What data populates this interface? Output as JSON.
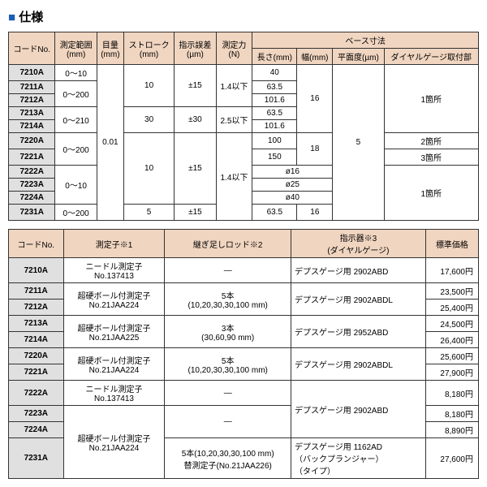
{
  "title": "仕様",
  "h1": {
    "code": "コードNo.",
    "range": "測定範囲\n(mm)",
    "scale": "目量\n(mm)",
    "stroke": "ストローク\n(mm)",
    "err": "指示誤差\n(µm)",
    "force": "測定力\n(N)",
    "base": "ベース寸法",
    "len": "長さ(mm)",
    "wid": "幅(mm)",
    "flat": "平面度(µm)",
    "mount": "ダイヤルゲージ取付部"
  },
  "r1": [
    {
      "c": "7210A",
      "rng": "0〜10",
      "len": "40"
    },
    {
      "c": "7211A",
      "len": "63.5"
    },
    {
      "c": "7212A",
      "len": "101.6"
    },
    {
      "c": "7213A",
      "len": "63.5"
    },
    {
      "c": "7214A",
      "len": "101.6"
    },
    {
      "c": "7220A",
      "len": "100"
    },
    {
      "c": "7221A",
      "len": "150"
    },
    {
      "c": "7222A",
      "len": "ø16"
    },
    {
      "c": "7223A",
      "len": "ø25"
    },
    {
      "c": "7224A",
      "len": "ø40"
    },
    {
      "c": "7231A",
      "len": "63.5"
    }
  ],
  "v": {
    "rng200": "0〜200",
    "rng210": "0〜210",
    "rng10": "0〜10",
    "scale": "0.01",
    "s10": "10",
    "s30": "30",
    "s5": "5",
    "e15": "±15",
    "e30": "±30",
    "f14": "1.4以下",
    "f25": "2.5以下",
    "w16": "16",
    "w18": "18",
    "flat5": "5",
    "m1": "1箇所",
    "m2": "2箇所",
    "m3": "3箇所"
  },
  "h2": {
    "code": "コードNo.",
    "probe": "測定子※1",
    "rod": "継ぎ足しロッド※2",
    "ind": "指示器※3\n(ダイヤルゲージ)",
    "price": "標準価格"
  },
  "r2": [
    {
      "c": "7210A",
      "pr": "ニードル測定子\nNo.137413",
      "rod": "—",
      "ind": "デプスゲージ用 2902ABD",
      "p": "17,600円"
    },
    {
      "c": "7211A",
      "pr": "超硬ボール付測定子\nNo.21JAA224",
      "rod": "5本\n(10,20,30,30,100 mm)",
      "ind": "デプスゲージ用 2902ABDL",
      "p": "23,500円"
    },
    {
      "c": "7212A",
      "p": "25,400円"
    },
    {
      "c": "7213A",
      "pr": "超硬ボール付測定子\nNo.21JAA225",
      "rod": "3本\n(30,60,90 mm)",
      "ind": "デプスゲージ用 2952ABD",
      "p": "24,500円"
    },
    {
      "c": "7214A",
      "p": "26,400円"
    },
    {
      "c": "7220A",
      "pr": "超硬ボール付測定子\nNo.21JAA224",
      "rod": "5本\n(10,20,30,30,100 mm)",
      "ind": "デプスゲージ用 2902ABDL",
      "p": "25,600円"
    },
    {
      "c": "7221A",
      "p": "27,900円"
    },
    {
      "c": "7222A",
      "pr": "ニードル測定子\nNo.137413",
      "rod": "—",
      "ind": "デプスゲージ用 2902ABD",
      "p": "8,180円"
    },
    {
      "c": "7223A",
      "pr": "超硬ボール付測定子\nNo.21JAA224",
      "rod": "—",
      "p": "8,180円"
    },
    {
      "c": "7224A",
      "p": "8,890円"
    },
    {
      "c": "7231A",
      "rod": "5本(10,20,30,30,100 mm)\n替測定子(No.21JAA226)",
      "ind": "デプスゲージ用 1162AD\n（バックプランジャー）\n（タイプ）",
      "p": "27,600円"
    }
  ]
}
